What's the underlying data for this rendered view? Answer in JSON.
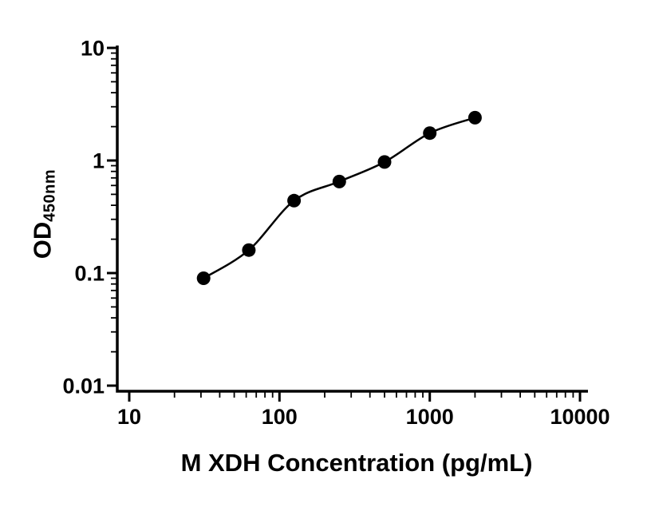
{
  "chart_data": {
    "type": "scatter",
    "title": "",
    "xlabel": "M XDH Concentration (pg/mL)",
    "ylabel_main": "OD",
    "ylabel_sub": "450nm",
    "x": [
      31.25,
      62.5,
      125,
      250,
      500,
      1000,
      2000
    ],
    "y": [
      0.09,
      0.16,
      0.44,
      0.65,
      0.97,
      1.75,
      2.4
    ],
    "xlim": [
      10,
      10000
    ],
    "ylim": [
      0.01,
      10
    ],
    "x_scale": "log",
    "y_scale": "log",
    "x_ticks": [
      {
        "value": 10,
        "label": "10"
      },
      {
        "value": 100,
        "label": "100"
      },
      {
        "value": 1000,
        "label": "1000"
      },
      {
        "value": 10000,
        "label": "10000"
      }
    ],
    "y_ticks": [
      {
        "value": 0.01,
        "label": "0.01"
      },
      {
        "value": 0.1,
        "label": "0.1"
      },
      {
        "value": 1,
        "label": "1"
      },
      {
        "value": 10,
        "label": "10"
      }
    ],
    "fit_line": true,
    "grid": false,
    "legend": "none",
    "marker_color": "#000000",
    "line_color": "#000000",
    "axis_color": "#000000",
    "background": "#ffffff"
  }
}
